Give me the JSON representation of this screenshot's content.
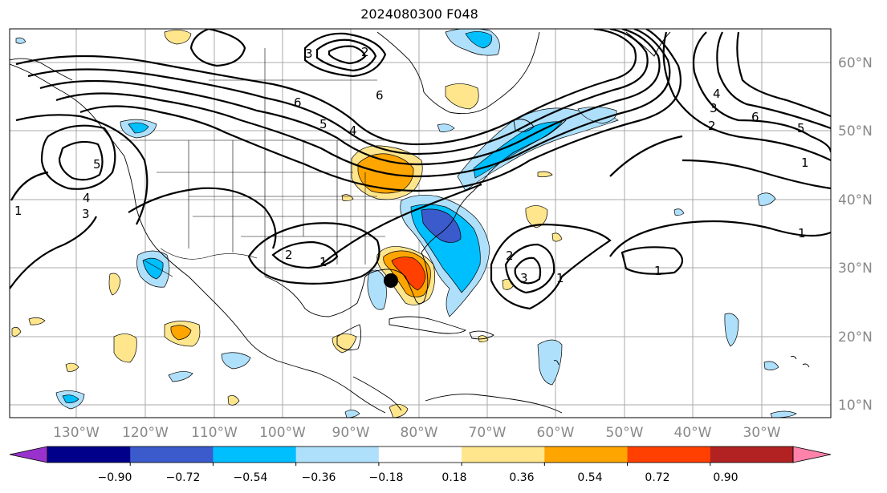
{
  "title": "2024080300 F048",
  "longitude_labels": [
    "130°W",
    "120°W",
    "110°W",
    "100°W",
    "90°W",
    "80°W",
    "70°W",
    "60°W",
    "50°W",
    "40°W",
    "30°W"
  ],
  "latitude_labels": [
    "60°N",
    "50°N",
    "40°N",
    "30°N",
    "20°N",
    "10°N"
  ],
  "colorbar": {
    "ticks": [
      "−0.90",
      "−0.72",
      "−0.54",
      "−0.36",
      "−0.18",
      "0.18",
      "0.36",
      "0.54",
      "0.72",
      "0.90"
    ],
    "colors": [
      "#9932cc",
      "#00008b",
      "#3b5bcc",
      "#00bfff",
      "#afe0fb",
      "#ffffff",
      "#ffe68c",
      "#ffa500",
      "#ff4000",
      "#b22222",
      "#ff82ab"
    ]
  },
  "contour_labels": [
    "1",
    "2",
    "3",
    "4",
    "5",
    "6",
    "1",
    "2",
    "3",
    "4",
    "5",
    "6",
    "1",
    "2",
    "3",
    "1",
    "2",
    "3",
    "4",
    "5",
    "6",
    "1",
    "1"
  ],
  "storm_marker": "storm-center-dot"
}
